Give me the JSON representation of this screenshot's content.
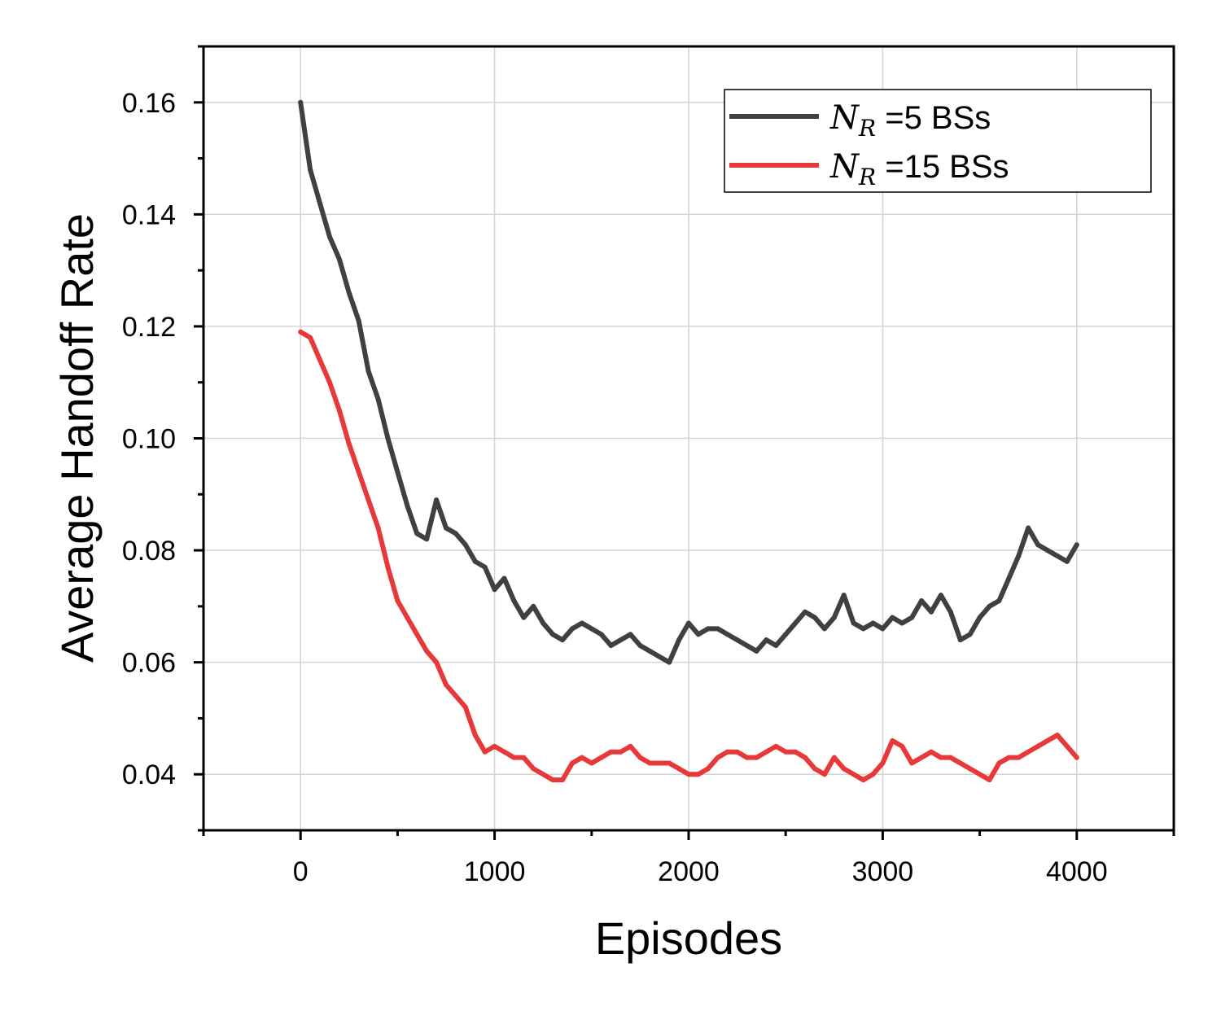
{
  "chart_data": {
    "type": "line",
    "xlabel": "Episodes",
    "ylabel": "Average Handoff Rate",
    "xlim": [
      -500,
      4500
    ],
    "ylim": [
      0.03,
      0.17
    ],
    "xticks": [
      0,
      1000,
      2000,
      3000,
      4000
    ],
    "xtick_labels": [
      "0",
      "1000",
      "2000",
      "3000",
      "4000"
    ],
    "yticks": [
      0.04,
      0.06,
      0.08,
      0.1,
      0.12,
      0.14,
      0.16
    ],
    "ytick_labels": [
      "0.04",
      "0.06",
      "0.08",
      "0.10",
      "0.12",
      "0.14",
      "0.16"
    ],
    "grid": true,
    "legend_position": "top-right",
    "series": [
      {
        "name_symbol": "N",
        "name_subscript": "R",
        "name": " =5 BSs",
        "color": "#404040",
        "x": [
          0,
          50,
          100,
          150,
          200,
          250,
          300,
          350,
          400,
          450,
          500,
          550,
          600,
          650,
          700,
          750,
          800,
          850,
          900,
          950,
          1000,
          1050,
          1100,
          1150,
          1200,
          1250,
          1300,
          1350,
          1400,
          1450,
          1500,
          1550,
          1600,
          1650,
          1700,
          1750,
          1800,
          1850,
          1900,
          1950,
          2000,
          2050,
          2100,
          2150,
          2200,
          2250,
          2300,
          2350,
          2400,
          2450,
          2500,
          2550,
          2600,
          2650,
          2700,
          2750,
          2800,
          2850,
          2900,
          2950,
          3000,
          3050,
          3100,
          3150,
          3200,
          3250,
          3300,
          3350,
          3400,
          3450,
          3500,
          3550,
          3600,
          3650,
          3700,
          3750,
          3800,
          3850,
          3900,
          3950,
          4000
        ],
        "y": [
          0.16,
          0.148,
          0.142,
          0.136,
          0.132,
          0.126,
          0.121,
          0.112,
          0.107,
          0.1,
          0.094,
          0.088,
          0.083,
          0.082,
          0.089,
          0.084,
          0.083,
          0.081,
          0.078,
          0.077,
          0.073,
          0.075,
          0.071,
          0.068,
          0.07,
          0.067,
          0.065,
          0.064,
          0.066,
          0.067,
          0.066,
          0.065,
          0.063,
          0.064,
          0.065,
          0.063,
          0.062,
          0.061,
          0.06,
          0.064,
          0.067,
          0.065,
          0.066,
          0.066,
          0.065,
          0.064,
          0.063,
          0.062,
          0.064,
          0.063,
          0.065,
          0.067,
          0.069,
          0.068,
          0.066,
          0.068,
          0.072,
          0.067,
          0.066,
          0.067,
          0.066,
          0.068,
          0.067,
          0.068,
          0.071,
          0.069,
          0.072,
          0.069,
          0.064,
          0.065,
          0.068,
          0.07,
          0.071,
          0.075,
          0.079,
          0.084,
          0.081,
          0.08,
          0.079,
          0.078,
          0.081
        ]
      },
      {
        "name_symbol": "N",
        "name_subscript": "R",
        "name": " =15 BSs",
        "color": "#e8393a",
        "x": [
          0,
          50,
          100,
          150,
          200,
          250,
          300,
          350,
          400,
          450,
          500,
          550,
          600,
          650,
          700,
          750,
          800,
          850,
          900,
          950,
          1000,
          1050,
          1100,
          1150,
          1200,
          1250,
          1300,
          1350,
          1400,
          1450,
          1500,
          1550,
          1600,
          1650,
          1700,
          1750,
          1800,
          1850,
          1900,
          1950,
          2000,
          2050,
          2100,
          2150,
          2200,
          2250,
          2300,
          2350,
          2400,
          2450,
          2500,
          2550,
          2600,
          2650,
          2700,
          2750,
          2800,
          2850,
          2900,
          2950,
          3000,
          3050,
          3100,
          3150,
          3200,
          3250,
          3300,
          3350,
          3400,
          3450,
          3500,
          3550,
          3600,
          3650,
          3700,
          3750,
          3800,
          3850,
          3900,
          3950,
          4000
        ],
        "y": [
          0.119,
          0.118,
          0.114,
          0.11,
          0.105,
          0.099,
          0.094,
          0.089,
          0.084,
          0.077,
          0.071,
          0.068,
          0.065,
          0.062,
          0.06,
          0.056,
          0.054,
          0.052,
          0.047,
          0.044,
          0.045,
          0.044,
          0.043,
          0.043,
          0.041,
          0.04,
          0.039,
          0.039,
          0.042,
          0.043,
          0.042,
          0.043,
          0.044,
          0.044,
          0.045,
          0.043,
          0.042,
          0.042,
          0.042,
          0.041,
          0.04,
          0.04,
          0.041,
          0.043,
          0.044,
          0.044,
          0.043,
          0.043,
          0.044,
          0.045,
          0.044,
          0.044,
          0.043,
          0.041,
          0.04,
          0.043,
          0.041,
          0.04,
          0.039,
          0.04,
          0.042,
          0.046,
          0.045,
          0.042,
          0.043,
          0.044,
          0.043,
          0.043,
          0.042,
          0.041,
          0.04,
          0.039,
          0.042,
          0.043,
          0.043,
          0.044,
          0.045,
          0.046,
          0.047,
          0.045,
          0.043
        ]
      }
    ]
  }
}
